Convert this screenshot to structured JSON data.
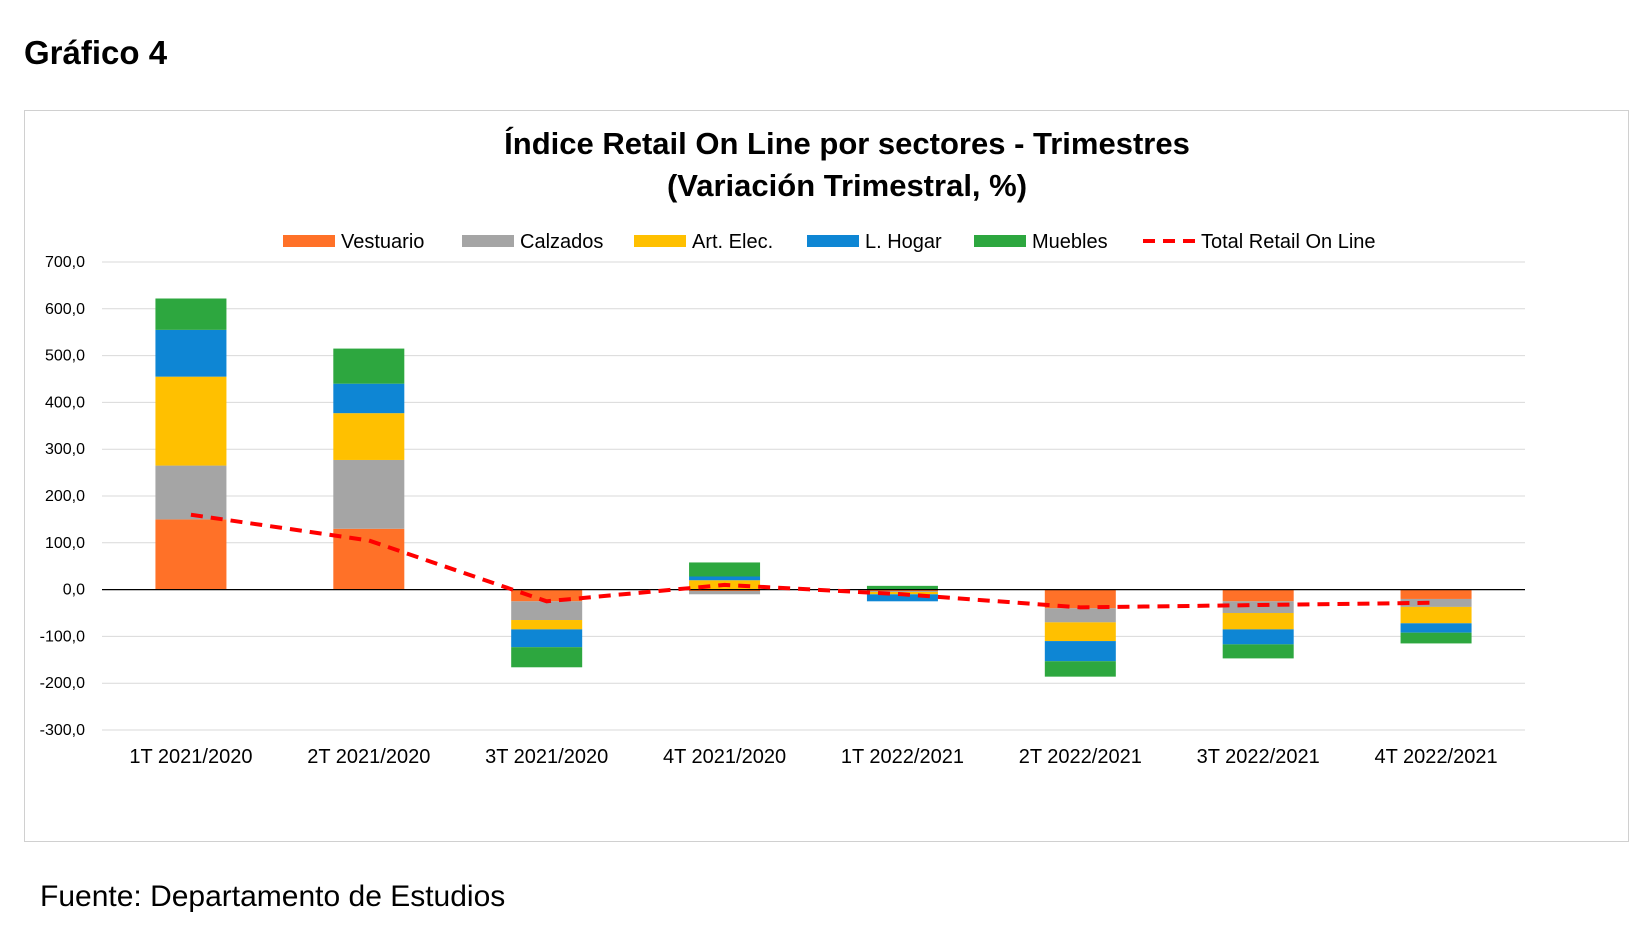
{
  "figure_label": "Gráfico 4",
  "source": "Fuente: Departamento de Estudios",
  "chart_data": {
    "type": "bar",
    "subtype": "stacked bar with line overlay",
    "title": "Índice Retail On Line por sectores - Trimestres",
    "subtitle": "(Variación Trimestral, %)",
    "categories": [
      "1T 2021/2020",
      "2T 2021/2020",
      "3T 2021/2020",
      "4T 2021/2020",
      "1T 2022/2021",
      "2T 2022/2021",
      "3T 2022/2021",
      "4T 2022/2021"
    ],
    "y_ticks": [
      "700,0",
      "600,0",
      "500,0",
      "400,0",
      "300,0",
      "200,0",
      "100,0",
      "0,0",
      "-100,0",
      "-200,0",
      "-300,0"
    ],
    "ylim": [
      -300,
      700
    ],
    "grid": true,
    "legend_position": "top",
    "series": [
      {
        "name": "Vestuario",
        "kind": "bar",
        "color": "#FF7128",
        "values": [
          150,
          130,
          -25,
          -3,
          -3,
          -40,
          -25,
          -20
        ]
      },
      {
        "name": "Calzados",
        "kind": "bar",
        "color": "#A5A5A5",
        "values": [
          115,
          147,
          -40,
          -7,
          -2,
          -30,
          -25,
          -17
        ]
      },
      {
        "name": "Art. Elec.",
        "kind": "bar",
        "color": "#FFC000",
        "values": [
          190,
          100,
          -20,
          20,
          -5,
          -40,
          -35,
          -35
        ]
      },
      {
        "name": "L. Hogar",
        "kind": "bar",
        "color": "#0E86D4",
        "values": [
          100,
          63,
          -38,
          8,
          -15,
          -43,
          -32,
          -20
        ]
      },
      {
        "name": "Muebles",
        "kind": "bar",
        "color": "#2DA73F",
        "values": [
          67,
          75,
          -43,
          30,
          8,
          -33,
          -30,
          -23
        ]
      },
      {
        "name": "Total Retail On Line",
        "kind": "line",
        "style": "dashed",
        "color": "#FF0000",
        "values": [
          160,
          105,
          -25,
          10,
          -10,
          -38,
          -33,
          -28
        ]
      }
    ]
  }
}
